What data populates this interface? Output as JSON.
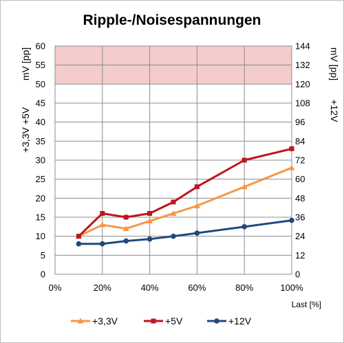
{
  "chart_data": {
    "type": "line",
    "title": "Ripple-/Noisespannungen",
    "xlabel": "Last [%]",
    "x_ticks": [
      "0%",
      "20%",
      "40%",
      "60%",
      "80%",
      "100%"
    ],
    "xlim": [
      0,
      100
    ],
    "y_left": {
      "label_top": "mV [pp]",
      "label_bottom": "+3,3V +5V",
      "ylim": [
        0,
        60
      ],
      "ticks": [
        "0",
        "5",
        "10",
        "15",
        "20",
        "25",
        "30",
        "35",
        "40",
        "45",
        "50",
        "55",
        "60"
      ]
    },
    "y_right": {
      "label_top": "mV [pp]",
      "label_bottom": "+12V",
      "ylim": [
        0,
        144
      ],
      "ticks": [
        "0",
        "12",
        "24",
        "36",
        "48",
        "60",
        "72",
        "84",
        "96",
        "108",
        "120",
        "132",
        "144"
      ]
    },
    "limit_band": {
      "axis": "left",
      "from": 50,
      "to": 60,
      "color": "#f4cccc"
    },
    "grid": true,
    "legend_position": "bottom",
    "series": [
      {
        "name": "+3,3V",
        "axis": "left",
        "color": "#f79646",
        "marker": "triangle",
        "x": [
          10,
          20,
          30,
          40,
          50,
          60,
          80,
          100
        ],
        "y": [
          10,
          13,
          12,
          14,
          16,
          18,
          23,
          28
        ]
      },
      {
        "name": "+5V",
        "axis": "left",
        "color": "#c0141c",
        "marker": "square",
        "x": [
          10,
          20,
          30,
          40,
          50,
          60,
          80,
          100
        ],
        "y": [
          10,
          16,
          15,
          16,
          19,
          23,
          30,
          33
        ]
      },
      {
        "name": "+12V",
        "axis": "right",
        "color": "#1f497d",
        "marker": "circle",
        "x": [
          10,
          20,
          30,
          40,
          50,
          60,
          80,
          100
        ],
        "y": [
          19.2,
          19.2,
          21,
          22.2,
          24,
          26,
          30,
          34
        ]
      }
    ]
  }
}
